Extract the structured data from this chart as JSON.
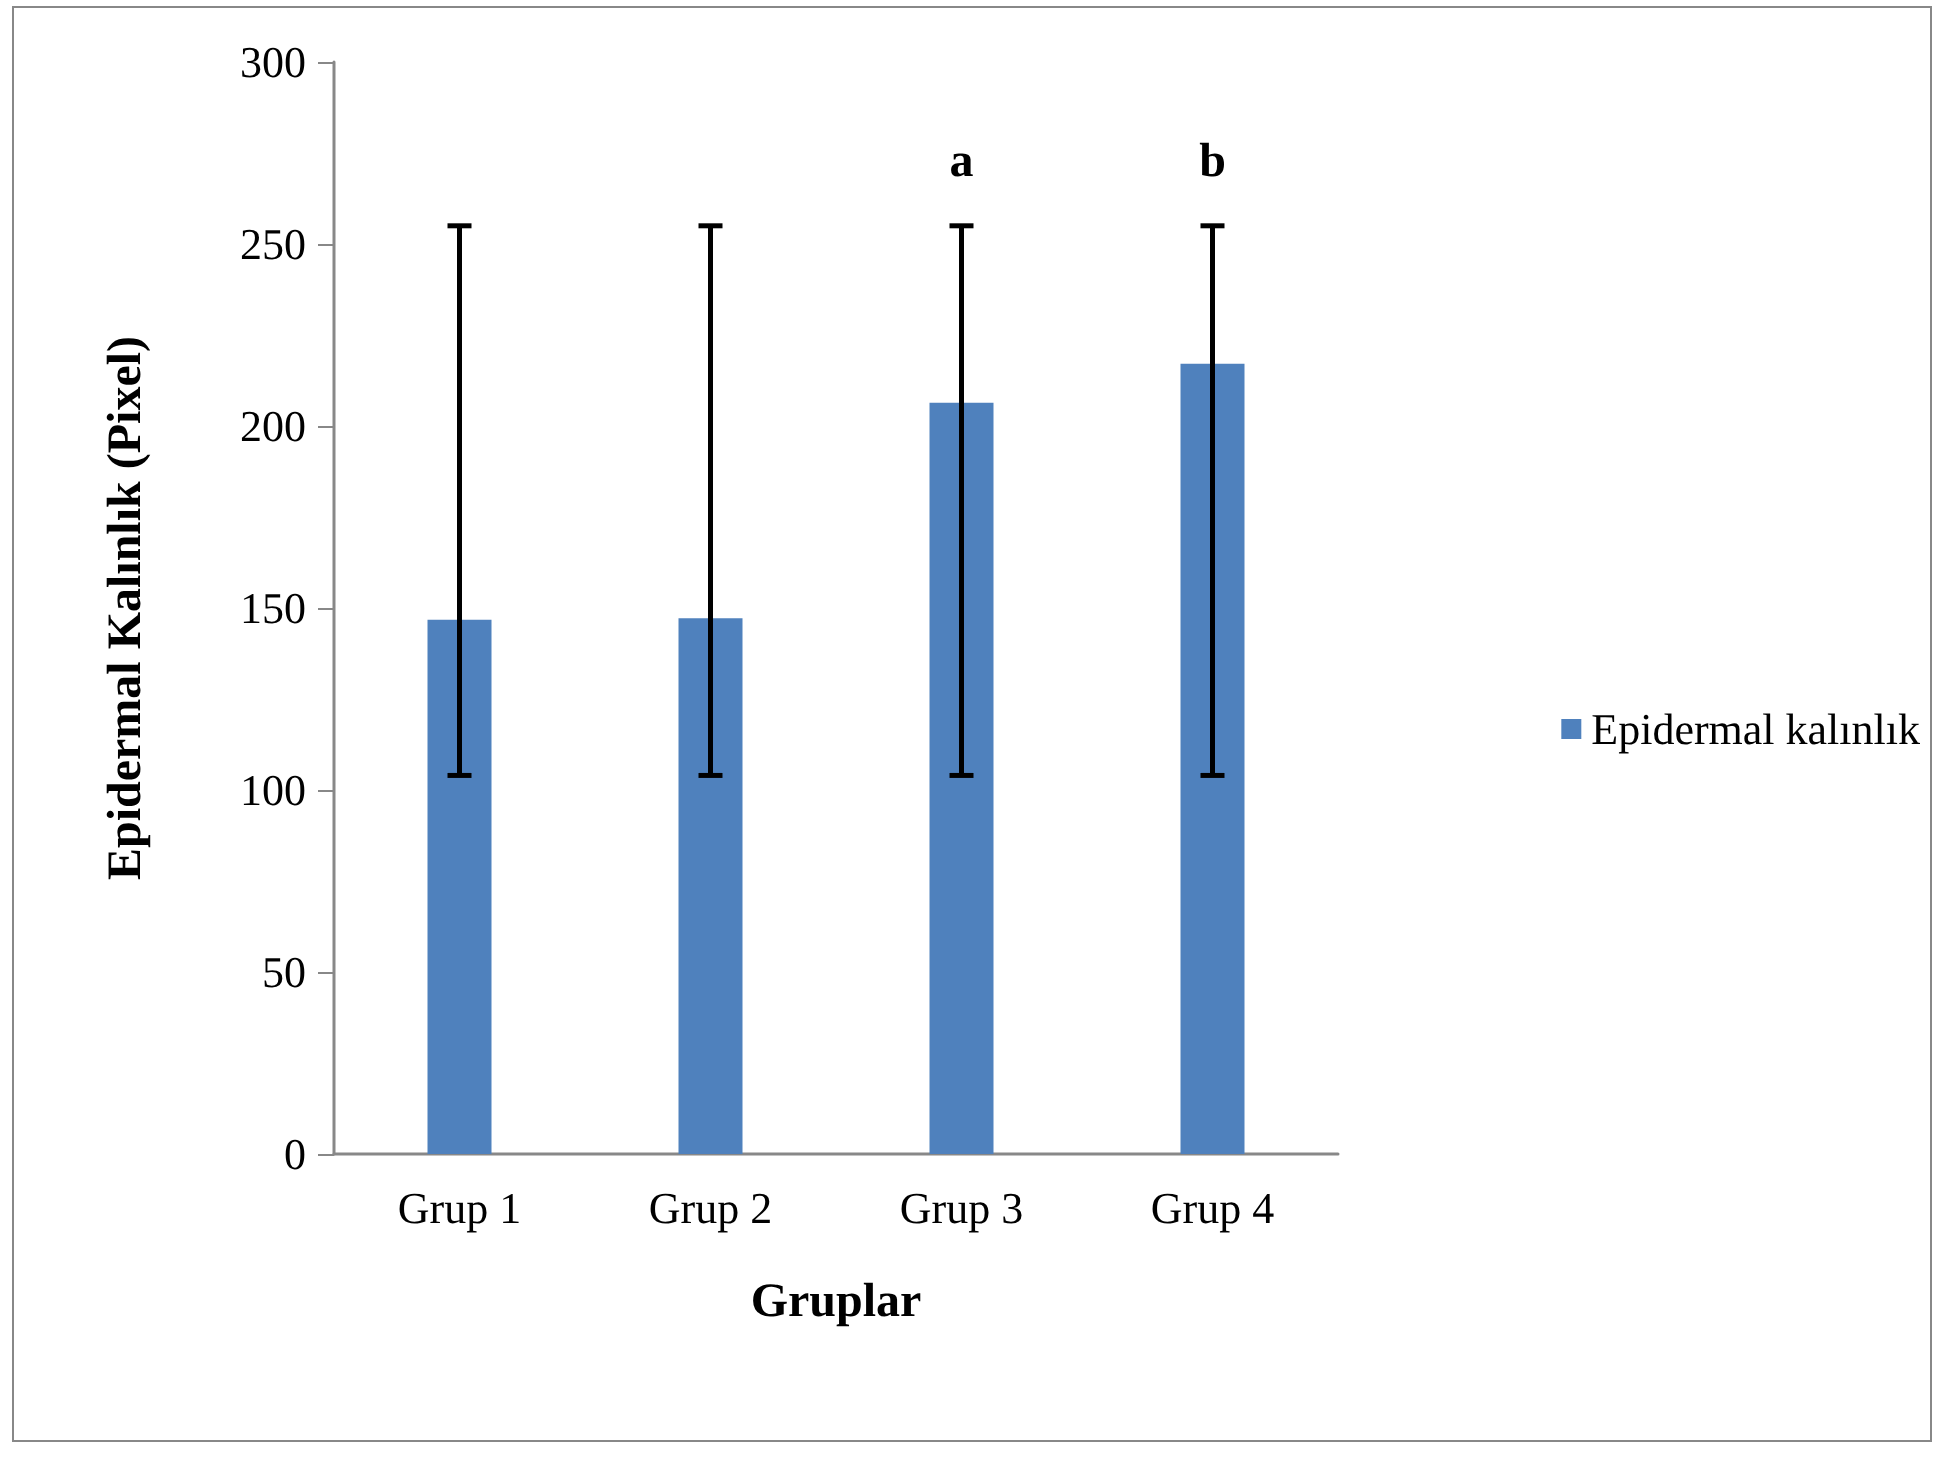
{
  "chart_data": {
    "type": "bar",
    "xlabel": "Gruplar",
    "ylabel": "Epidermal Kalınlık (Pixel)",
    "categories": [
      "Grup 1",
      "Grup 2",
      "Grup 3",
      "Grup 4"
    ],
    "series": [
      {
        "name": "Epidermal kalınlık",
        "color": "#4f81bd",
        "values": [
          146.8,
          147.2,
          206.4,
          217.1
        ],
        "errors": [
          [
            104,
            255
          ],
          [
            104,
            255
          ],
          [
            104,
            255
          ],
          [
            104,
            255
          ]
        ]
      }
    ],
    "ylim": [
      0,
      300
    ],
    "yticks": [
      0,
      50,
      100,
      150,
      200,
      250,
      300
    ],
    "grid": false,
    "legend": "right",
    "annotations": [
      "a",
      "b"
    ]
  }
}
